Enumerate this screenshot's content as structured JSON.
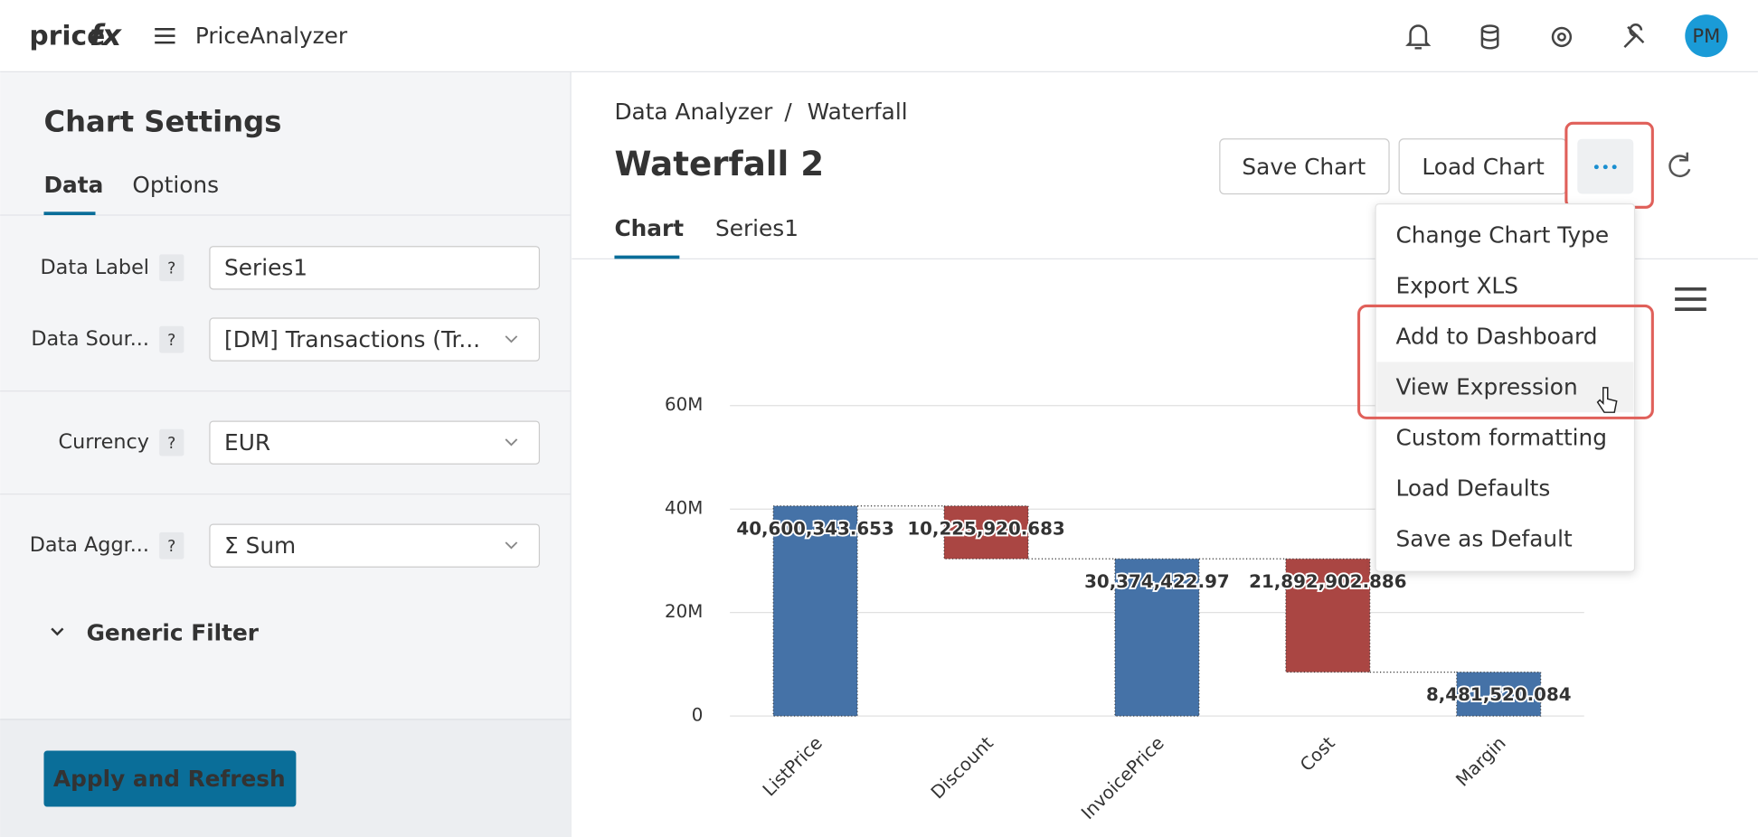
{
  "header": {
    "logo_main": "price",
    "logo_accent": "fx",
    "app": "PriceAnalyzer",
    "avatar": "PM"
  },
  "sidebar": {
    "title": "Chart Settings",
    "tabs": [
      "Data",
      "Options"
    ],
    "fields": [
      {
        "label": "Data Label",
        "help": "?",
        "value": "Series1"
      },
      {
        "label": "Data Sour...",
        "help": "?",
        "value": "[DM] Transactions (Tr..."
      },
      {
        "label": "Currency",
        "help": "?",
        "value": "EUR"
      },
      {
        "label": "Data Aggr...",
        "help": "?",
        "value": "Σ Sum"
      }
    ],
    "section": "Generic Filter",
    "button": "Apply and Refresh"
  },
  "main": {
    "breadcrumb": [
      "Data Analyzer",
      "Waterfall"
    ],
    "separator": "/",
    "title": "Waterfall 2",
    "buttons": [
      "Save Chart",
      "Load Chart"
    ],
    "tabs": [
      "Chart",
      "Series1"
    ]
  },
  "menu": {
    "items": [
      "Change Chart Type",
      "Export XLS",
      "Add to Dashboard",
      "View Expression",
      "Custom formatting",
      "Load Defaults",
      "Save as Default"
    ]
  },
  "chart_data": {
    "type": "waterfall",
    "categories": [
      "ListPrice",
      "Discount",
      "InvoicePrice",
      "Cost",
      "Margin"
    ],
    "values": [
      40600343.653,
      -10225920.683,
      30374422.97,
      -21892902.886,
      8481520.084
    ],
    "value_labels": [
      "40,600,343.653",
      "10,225,920.683",
      "30,374,422.97",
      "21,892,902.886",
      "8,481,520.084"
    ],
    "colors": [
      "#4572a7",
      "#aa4643",
      "#4572a7",
      "#aa4643",
      "#4572a7"
    ],
    "ylim": [
      0,
      60000000
    ],
    "yticks": [
      0,
      {
        "value": 20000000,
        "label": "20M"
      },
      {
        "value": 40000000,
        "label": "40M"
      },
      {
        "value": 60000000,
        "label": "60M"
      }
    ],
    "grid": true
  }
}
